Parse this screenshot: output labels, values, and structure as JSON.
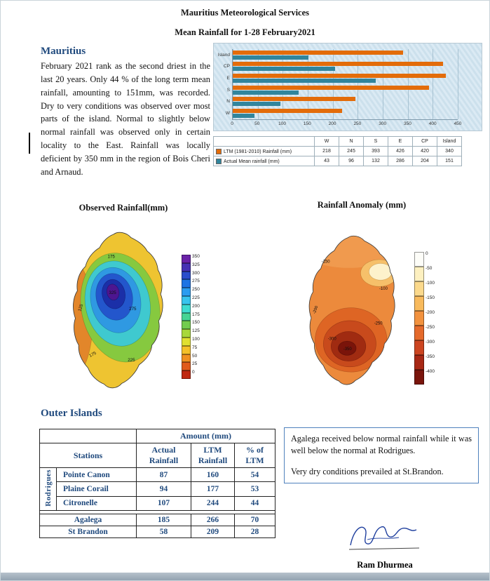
{
  "page": {
    "title_line1": "Mauritius Meteorological Services",
    "title_line2": "Mean Rainfall for 1-28 February2021"
  },
  "mauritius_section": {
    "heading": "Mauritius",
    "paragraph": "February 2021 rank as the second driest in the last 20 years. Only 44 % of the long term mean rainfall, amounting to 151mm, was recorded. Dry to very conditions was observed over most parts of the island. Normal to slightly below normal rainfall was observed only in certain locality to the East. Rainfall was locally deficient by 350 mm in the region of Bois Cheri and Arnaud."
  },
  "chart_data": {
    "type": "bar",
    "orientation": "horizontal",
    "categories": [
      "Island",
      "CP",
      "E",
      "S",
      "N",
      "W"
    ],
    "series": [
      {
        "name": "LTM (1981-2010) Rainfall (mm)",
        "color": "#E36C0A",
        "values": [
          340,
          420,
          426,
          393,
          245,
          218
        ]
      },
      {
        "name": "Actual Mean rainfall (mm)",
        "color": "#31859C",
        "values": [
          151,
          204,
          286,
          132,
          96,
          43
        ]
      }
    ],
    "xlim": [
      0,
      450
    ],
    "xticks": [
      0,
      50,
      100,
      150,
      200,
      250,
      300,
      350,
      400,
      450
    ],
    "grid": true,
    "legend_position": "bottom-table",
    "table_column_order": [
      "W",
      "N",
      "S",
      "E",
      "CP",
      "Island"
    ]
  },
  "maps": {
    "observed": {
      "title": "Observed Rainfall(mm)",
      "colorbar_labels": [
        350,
        325,
        300,
        275,
        250,
        225,
        200,
        175,
        150,
        125,
        100,
        75,
        50,
        25,
        0
      ],
      "colorbar_colors": [
        "#6a22a8",
        "#4631b4",
        "#2b4ecc",
        "#1e74e4",
        "#2b9cf0",
        "#38c4ee",
        "#3edcd0",
        "#46d494",
        "#72cc4e",
        "#a8d83a",
        "#e0e030",
        "#f4c028",
        "#f09020",
        "#e05a1a",
        "#c02810"
      ],
      "contour_labels": [
        "175",
        "125",
        "175",
        "225",
        "275",
        "325"
      ]
    },
    "anomaly": {
      "title": "Rainfall Anomaly (mm)",
      "colorbar_labels": [
        0,
        -50,
        -100,
        -150,
        -200,
        -250,
        -300,
        -350,
        -400
      ],
      "colorbar_colors": [
        "#fdfdf8",
        "#fdf0c0",
        "#fbd98c",
        "#f8ba5c",
        "#f2923e",
        "#e56a2b",
        "#cc4520",
        "#a82815",
        "#7a150c"
      ],
      "contour_labels": [
        "-150",
        "-100",
        "-200",
        "-250",
        "-300",
        "-350"
      ]
    }
  },
  "outer_islands": {
    "heading": "Outer Islands",
    "table": {
      "amount_header": "Amount (mm)",
      "stations_header": "Stations",
      "col_headers": [
        "Actual Rainfall",
        "LTM Rainfall",
        "% of LTM"
      ],
      "group_label": "Rodrigues",
      "rows": [
        {
          "station": "Pointe Canon",
          "actual": "87",
          "ltm": "160",
          "pct": "54"
        },
        {
          "station": "Plaine Corail",
          "actual": "94",
          "ltm": "177",
          "pct": "53"
        },
        {
          "station": "Citronelle",
          "actual": "107",
          "ltm": "244",
          "pct": "44"
        }
      ],
      "extra_rows": [
        {
          "station": "Agalega",
          "actual": "185",
          "ltm": "266",
          "pct": "70"
        },
        {
          "station": "St Brandon",
          "actual": "58",
          "ltm": "209",
          "pct": "28"
        }
      ]
    },
    "note_line1": "Agalega received below normal rainfall while it was well below the normal at Rodrigues.",
    "note_line2": "Very dry conditions prevailed at St.Brandon."
  },
  "signature": {
    "name": "Ram Dhurmea"
  }
}
